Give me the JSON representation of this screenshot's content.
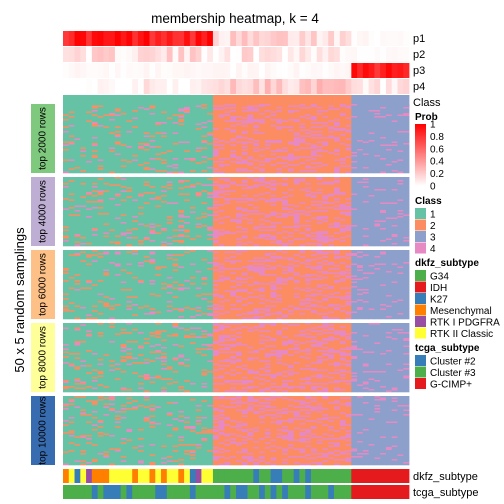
{
  "chart_data": {
    "type": "heatmap",
    "title": "membership heatmap, k = 4",
    "ylabel": "50 x 5 random samplings",
    "n_samples": 60,
    "sample_blocks": [
      {
        "class": "1",
        "count": 26
      },
      {
        "class": "2",
        "count": 24
      },
      {
        "class": "3",
        "count": 10
      }
    ],
    "probability_rows": [
      {
        "name": "p1",
        "by_class": {
          "1": 0.9,
          "2": 0.15,
          "3": 0.0
        }
      },
      {
        "name": "p2",
        "by_class": {
          "1": 0.12,
          "2": 0.1,
          "3": 0.0
        }
      },
      {
        "name": "p3",
        "by_class": {
          "1": 0.0,
          "2": 0.0,
          "3": 0.85
        }
      },
      {
        "name": "p4",
        "by_class": {
          "1": 0.03,
          "2": 0.2,
          "3": 0.05
        }
      }
    ],
    "class_row_label": "Class",
    "row_groups": [
      {
        "label": "top 2000 rows",
        "color": "#7FC97F"
      },
      {
        "label": "top 4000 rows",
        "color": "#BEAED4"
      },
      {
        "label": "top 6000 rows",
        "color": "#FDC086"
      },
      {
        "label": "top 8000 rows",
        "color": "#FFFF99"
      },
      {
        "label": "top 10000 rows",
        "color": "#386CB0"
      }
    ],
    "bottom_tracks": [
      {
        "name": "dkfz_subtype"
      },
      {
        "name": "tcga_subtype"
      }
    ],
    "legends": [
      {
        "title": "Prob",
        "kind": "gradient",
        "ticks": [
          "1",
          "0.8",
          "0.6",
          "0.4",
          "0.2",
          "0"
        ],
        "colors": [
          "#FF0000",
          "#FFFFFF"
        ]
      },
      {
        "title": "Class",
        "kind": "discrete",
        "items": [
          {
            "label": "1",
            "color": "#66C2A5"
          },
          {
            "label": "2",
            "color": "#FC8D62"
          },
          {
            "label": "3",
            "color": "#8DA0CB"
          },
          {
            "label": "4",
            "color": "#E78AC3"
          }
        ]
      },
      {
        "title": "dkfz_subtype",
        "kind": "discrete",
        "items": [
          {
            "label": "G34",
            "color": "#4DAF4A"
          },
          {
            "label": "IDH",
            "color": "#E41A1C"
          },
          {
            "label": "K27",
            "color": "#377EB8"
          },
          {
            "label": "Mesenchymal",
            "color": "#FF7F00"
          },
          {
            "label": "RTK I PDGFRA",
            "color": "#984EA3"
          },
          {
            "label": "RTK II Classic",
            "color": "#FFFF33"
          }
        ]
      },
      {
        "title": "tcga_subtype",
        "kind": "discrete",
        "items": [
          {
            "label": "Cluster #2",
            "color": "#377EB8"
          },
          {
            "label": "Cluster #3",
            "color": "#4DAF4A"
          },
          {
            "label": "G-CIMP+",
            "color": "#E41A1C"
          }
        ]
      }
    ]
  }
}
